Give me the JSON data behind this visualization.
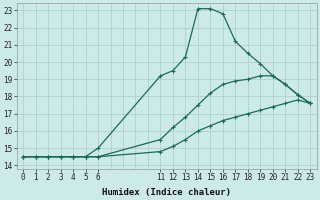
{
  "bg_color": "#cceae8",
  "grid_color": "#b0d0d0",
  "line_color": "#1a6b5a",
  "x_ticks": [
    0,
    1,
    2,
    3,
    4,
    5,
    6,
    11,
    12,
    13,
    14,
    15,
    16,
    17,
    18,
    19,
    20,
    21,
    22,
    23
  ],
  "x_tick_labels": [
    "0",
    "1",
    "2",
    "3",
    "4",
    "5",
    "6",
    "11",
    "12",
    "13",
    "14",
    "15",
    "16",
    "17",
    "18",
    "19",
    "20",
    "21",
    "22",
    "23"
  ],
  "xlim": [
    -0.5,
    23.5
  ],
  "ylim": [
    13.8,
    23.4
  ],
  "y_ticks": [
    14,
    15,
    16,
    17,
    18,
    19,
    20,
    21,
    22,
    23
  ],
  "xlabel": "Humidex (Indice chaleur)",
  "line1_x": [
    0,
    1,
    2,
    3,
    4,
    5,
    6,
    11,
    12,
    13,
    14,
    15,
    16,
    17,
    18,
    19,
    20,
    21,
    22,
    23
  ],
  "line1_y": [
    14.5,
    14.5,
    14.5,
    14.5,
    14.5,
    14.5,
    15.0,
    19.2,
    19.5,
    20.3,
    23.1,
    23.1,
    22.8,
    21.2,
    20.5,
    19.9,
    19.2,
    18.7,
    18.1,
    17.6
  ],
  "line2_x": [
    0,
    1,
    2,
    3,
    4,
    5,
    6,
    11,
    12,
    13,
    14,
    15,
    16,
    17,
    18,
    19,
    20,
    21,
    22,
    23
  ],
  "line2_y": [
    14.5,
    14.5,
    14.5,
    14.5,
    14.5,
    14.5,
    14.5,
    15.5,
    16.2,
    16.8,
    17.5,
    18.2,
    18.7,
    18.9,
    19.0,
    19.2,
    19.2,
    18.7,
    18.1,
    17.6
  ],
  "line3_x": [
    0,
    1,
    2,
    3,
    4,
    5,
    6,
    11,
    12,
    13,
    14,
    15,
    16,
    17,
    18,
    19,
    20,
    21,
    22,
    23
  ],
  "line3_y": [
    14.5,
    14.5,
    14.5,
    14.5,
    14.5,
    14.5,
    14.5,
    14.8,
    15.1,
    15.5,
    16.0,
    16.3,
    16.6,
    16.8,
    17.0,
    17.2,
    17.4,
    17.6,
    17.8,
    17.6
  ],
  "tick_fontsize": 5.5,
  "xlabel_fontsize": 6.5,
  "marker_size": 3.5,
  "line_width": 0.9
}
